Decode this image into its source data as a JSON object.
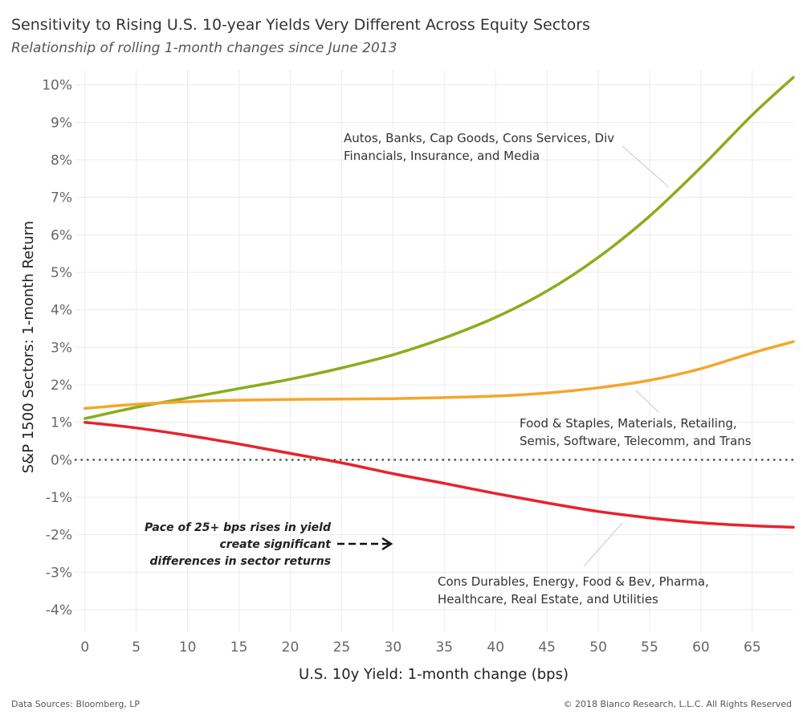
{
  "header": {
    "title": "Sensitivity to Rising U.S. 10-year Yields Very Different Across Equity Sectors",
    "subtitle": "Relationship of rolling 1-month changes since June 2013"
  },
  "footer": {
    "source": "Data Sources: Bloomberg, LP",
    "copyright": "© 2018 Bianco Research, L.L.C. All Rights Reserved"
  },
  "chart_data": {
    "type": "line",
    "xlabel": "U.S. 10y Yield: 1-month change (bps)",
    "ylabel": "S&P 1500 Sectors: 1-month Return",
    "xlim": [
      -1,
      69
    ],
    "ylim": [
      -4.6,
      10.4
    ],
    "xticks": [
      0,
      5,
      10,
      15,
      20,
      25,
      30,
      35,
      40,
      45,
      50,
      55,
      60,
      65
    ],
    "yticks": [
      -4,
      -3,
      -2,
      -1,
      0,
      1,
      2,
      3,
      4,
      5,
      6,
      7,
      8,
      9,
      10
    ],
    "ytick_suffix": "%",
    "grid": true,
    "zero_line": "dotted",
    "series": [
      {
        "color": "#8aad1c",
        "x": [
          0,
          5,
          10,
          15,
          20,
          25,
          30,
          35,
          40,
          45,
          50,
          55,
          60,
          65,
          69
        ],
        "values": [
          1.1,
          1.4,
          1.65,
          1.9,
          2.15,
          2.45,
          2.8,
          3.25,
          3.8,
          4.5,
          5.4,
          6.5,
          7.8,
          9.2,
          10.2
        ]
      },
      {
        "color": "#f5a52c",
        "x": [
          0,
          5,
          10,
          15,
          20,
          25,
          30,
          35,
          40,
          45,
          50,
          55,
          60,
          65,
          69
        ],
        "values": [
          1.37,
          1.48,
          1.55,
          1.59,
          1.61,
          1.62,
          1.63,
          1.66,
          1.7,
          1.78,
          1.92,
          2.12,
          2.43,
          2.85,
          3.15
        ]
      },
      {
        "color": "#e8222e",
        "x": [
          0,
          5,
          10,
          15,
          20,
          25,
          30,
          35,
          40,
          45,
          50,
          55,
          60,
          65,
          69
        ],
        "values": [
          1.0,
          0.85,
          0.65,
          0.42,
          0.17,
          -0.08,
          -0.37,
          -0.63,
          -0.9,
          -1.15,
          -1.38,
          -1.55,
          -1.68,
          -1.76,
          -1.8
        ]
      }
    ],
    "annotations": [
      {
        "lines": [
          "Autos, Banks, Cap Goods, Cons Services, Div",
          "Financials, Insurance, and Media"
        ]
      },
      {
        "lines": [
          "Food & Staples, Materials, Retailing,",
          "Semis, Software, Telecomm, and Trans"
        ]
      },
      {
        "lines": [
          "Cons Durables, Energy, Food & Bev, Pharma,",
          "Healthcare, Real Estate, and Utilities"
        ]
      },
      {
        "lines": [
          "Pace of 25+ bps rises in yield",
          "create significant",
          "differences in sector returns"
        ]
      }
    ]
  }
}
